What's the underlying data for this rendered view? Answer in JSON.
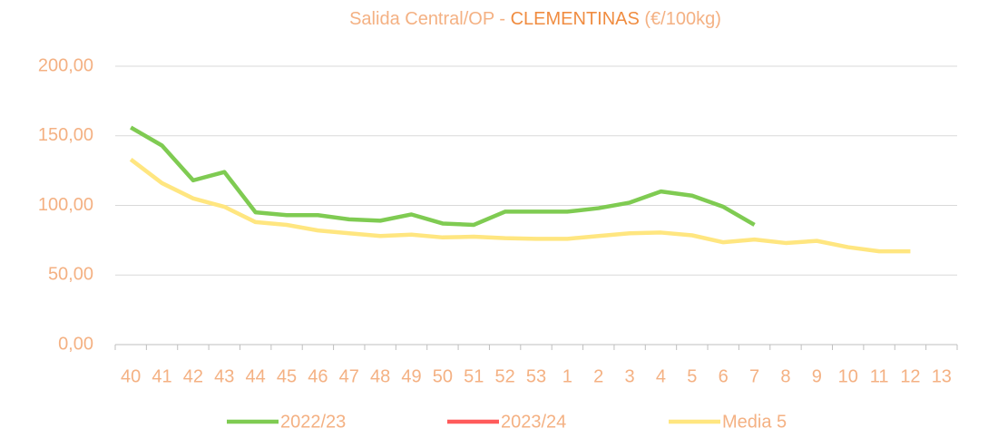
{
  "chart_data": {
    "type": "line",
    "title": [
      "Salida Central/OP - ",
      "CLEMENTINAS",
      " (€/100kg)"
    ],
    "categories": [
      "40",
      "41",
      "42",
      "43",
      "44",
      "45",
      "46",
      "47",
      "48",
      "49",
      "50",
      "51",
      "52",
      "53",
      "1",
      "2",
      "3",
      "4",
      "5",
      "6",
      "7",
      "8",
      "9",
      "10",
      "11",
      "12",
      "13"
    ],
    "series": [
      {
        "name": "2022/23",
        "color": "#7fcb52",
        "values": [
          156,
          143,
          118,
          124,
          95,
          93,
          93,
          90,
          89,
          93.5,
          87,
          86,
          95.5,
          95.5,
          95.5,
          98,
          102,
          110,
          107,
          99,
          86,
          null,
          null,
          null,
          null,
          null,
          null
        ]
      },
      {
        "name": "2023/24",
        "color": "#ff5b5b",
        "values": [
          null,
          null,
          null,
          null,
          null,
          null,
          null,
          null,
          null,
          null,
          null,
          null,
          null,
          null,
          null,
          null,
          null,
          null,
          null,
          null,
          null,
          null,
          null,
          null,
          null,
          null,
          null
        ]
      },
      {
        "name": "Media 5",
        "color": "#ffe680",
        "values": [
          133,
          116,
          105,
          99,
          88,
          86,
          82,
          80,
          78,
          79,
          77,
          77.5,
          76.5,
          76,
          76,
          78,
          80,
          80.5,
          78.5,
          73.5,
          75.5,
          73,
          74.5,
          70,
          67,
          67,
          null
        ]
      }
    ],
    "ylim": [
      0,
      200
    ],
    "yticks": [
      {
        "value": 0,
        "label": "0,00"
      },
      {
        "value": 50,
        "label": "50,00"
      },
      {
        "value": 100,
        "label": "100,00"
      },
      {
        "value": 150,
        "label": "150,00"
      },
      {
        "value": 200,
        "label": "200,00"
      }
    ],
    "grid": true,
    "legend": "bottom"
  }
}
